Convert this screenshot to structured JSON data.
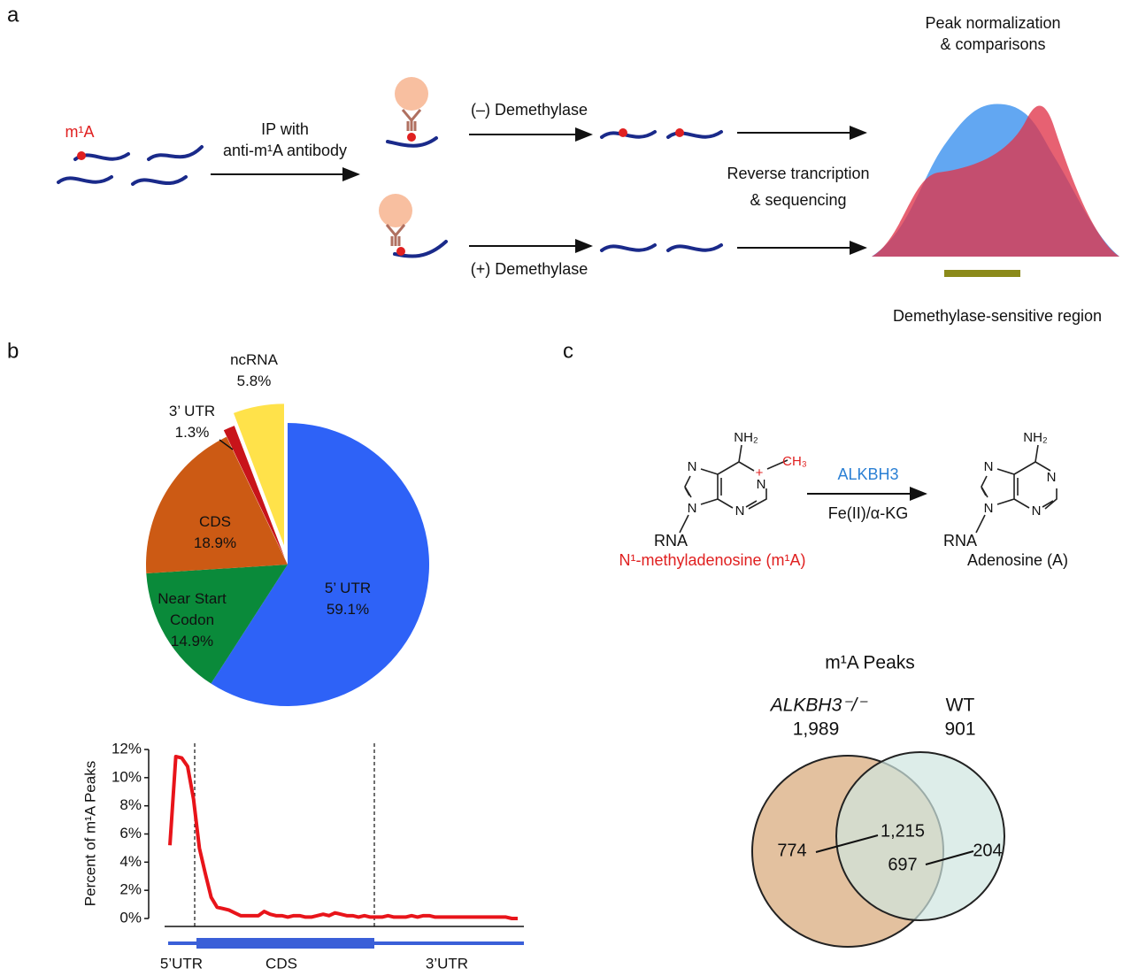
{
  "panel_labels": [
    "a",
    "b",
    "c"
  ],
  "schematic": {
    "modification": "m¹A",
    "ip_step": [
      "IP with",
      "anti-m¹A antibody"
    ],
    "minus": "(–) Demethylase",
    "plus": "(+) Demethylase",
    "sequencing": [
      "Reverse trancription",
      "& sequencing"
    ],
    "normalization": [
      "Peak normalization",
      "& comparisons"
    ],
    "region": "Demethylase-sensitive region"
  },
  "reaction": {
    "enzyme": "ALKBH3",
    "cofactor": "Fe(II)/α-KG",
    "substrate": "N¹-methyladenosine (m¹A)",
    "product": "Adenosine (A)",
    "atoms": {
      "amine": "NH₂",
      "nitrogen": "N",
      "methyl": "CH₃",
      "charge": "+",
      "rna": "RNA"
    }
  },
  "chart_data": [
    {
      "type": "pie",
      "categories": [
        "5’ UTR",
        "Near Start Codon",
        "CDS",
        "3’ UTR",
        "ncRNA"
      ],
      "values": [
        59.1,
        14.9,
        18.9,
        1.3,
        5.8
      ],
      "value_labels": [
        "59.1%",
        "14.9%",
        "18.9%",
        "1.3%",
        "5.8%"
      ],
      "colors": [
        "#2e62f7",
        "#0a8a3a",
        "#cc5a14",
        "#c8141a",
        "#ffe24a"
      ]
    },
    {
      "type": "line",
      "y_label": "Percent of m¹A Peaks",
      "color": "#e8141a",
      "values": [
        5.2,
        11.5,
        11.4,
        10.8,
        8.5,
        5.0,
        3.2,
        1.5,
        0.8,
        0.7,
        0.6,
        0.4,
        0.2,
        0.2,
        0.2,
        0.2,
        0.5,
        0.3,
        0.2,
        0.2,
        0.1,
        0.2,
        0.2,
        0.1,
        0.1,
        0.2,
        0.3,
        0.2,
        0.4,
        0.3,
        0.2,
        0.2,
        0.1,
        0.2,
        0.1,
        0.1,
        0.1,
        0.2,
        0.1,
        0.1,
        0.1,
        0.2,
        0.1,
        0.2,
        0.2,
        0.1,
        0.1,
        0.1,
        0.1,
        0.1,
        0.1,
        0.1,
        0.1,
        0.1,
        0.1,
        0.1,
        0.1,
        0.1,
        0.0,
        0.0
      ],
      "ylim": [
        0,
        12
      ],
      "yticks": [
        {
          "value": 0,
          "label": "0%"
        },
        {
          "value": 2,
          "label": "2%"
        },
        {
          "value": 4,
          "label": "4%"
        },
        {
          "value": 6,
          "label": "6%"
        },
        {
          "value": 8,
          "label": "8%"
        },
        {
          "value": 10,
          "label": "10%"
        },
        {
          "value": 12,
          "label": "12%"
        }
      ],
      "regions": [
        "5’UTR",
        "CDS",
        "3’UTR"
      ]
    },
    {
      "type": "venn",
      "title": "m¹A Peaks",
      "sets": {
        "names": [
          "ALKBH3⁻/⁻",
          "WT"
        ],
        "values": [
          1989,
          901
        ],
        "value_labels": [
          "1,989",
          "901"
        ],
        "colors": [
          "#e3c19f",
          "#cfe6df"
        ]
      },
      "regions": {
        "values": [
          774,
          1215,
          697,
          204
        ],
        "value_labels": [
          "774",
          "1,215",
          "697",
          "204"
        ]
      }
    }
  ]
}
